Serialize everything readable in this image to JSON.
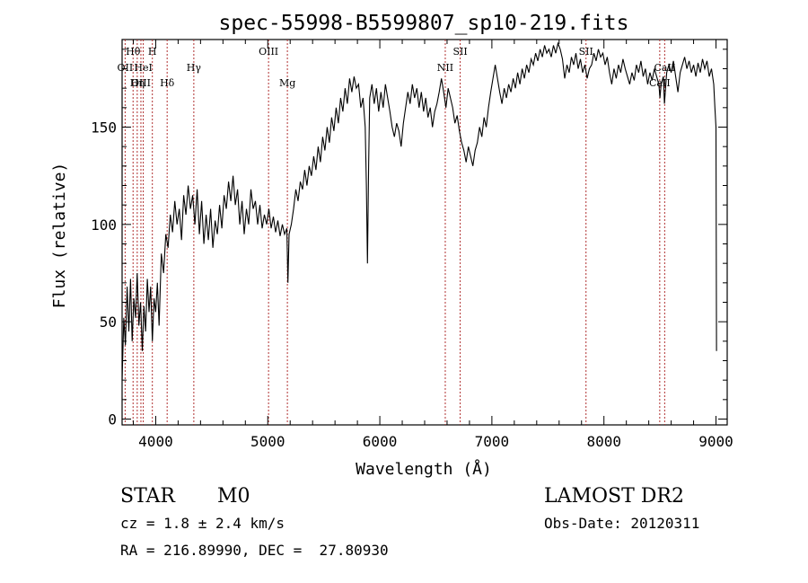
{
  "chart_data": {
    "type": "line",
    "title": "spec-55998-B5599807_sp10-219.fits",
    "xlabel": "Wavelength (Å)",
    "ylabel": "Flux (relative)",
    "xlim": [
      3700,
      9100
    ],
    "ylim": [
      -3,
      195
    ],
    "xticks": [
      4000,
      5000,
      6000,
      7000,
      8000,
      9000
    ],
    "yticks": [
      0,
      50,
      100,
      150
    ],
    "grid": false,
    "line_color": "#000000",
    "marker_color": "#b03030",
    "series": [
      {
        "points": [
          [
            3700,
            20
          ],
          [
            3715,
            52
          ],
          [
            3730,
            38
          ],
          [
            3745,
            68
          ],
          [
            3760,
            45
          ],
          [
            3775,
            72
          ],
          [
            3790,
            40
          ],
          [
            3805,
            62
          ],
          [
            3820,
            52
          ],
          [
            3835,
            75
          ],
          [
            3850,
            48
          ],
          [
            3865,
            60
          ],
          [
            3880,
            35
          ],
          [
            3895,
            58
          ],
          [
            3910,
            45
          ],
          [
            3925,
            72
          ],
          [
            3940,
            55
          ],
          [
            3955,
            68
          ],
          [
            3970,
            40
          ],
          [
            3985,
            62
          ],
          [
            4000,
            55
          ],
          [
            4015,
            70
          ],
          [
            4030,
            48
          ],
          [
            4050,
            85
          ],
          [
            4070,
            75
          ],
          [
            4090,
            95
          ],
          [
            4110,
            88
          ],
          [
            4130,
            105
          ],
          [
            4150,
            96
          ],
          [
            4170,
            112
          ],
          [
            4190,
            100
          ],
          [
            4210,
            108
          ],
          [
            4230,
            92
          ],
          [
            4250,
            115
          ],
          [
            4270,
            105
          ],
          [
            4290,
            120
          ],
          [
            4310,
            108
          ],
          [
            4330,
            115
          ],
          [
            4350,
            100
          ],
          [
            4370,
            118
          ],
          [
            4390,
            95
          ],
          [
            4410,
            112
          ],
          [
            4430,
            90
          ],
          [
            4450,
            105
          ],
          [
            4470,
            92
          ],
          [
            4490,
            108
          ],
          [
            4510,
            88
          ],
          [
            4530,
            102
          ],
          [
            4550,
            95
          ],
          [
            4570,
            110
          ],
          [
            4590,
            98
          ],
          [
            4610,
            115
          ],
          [
            4630,
            108
          ],
          [
            4650,
            122
          ],
          [
            4670,
            112
          ],
          [
            4690,
            125
          ],
          [
            4710,
            110
          ],
          [
            4730,
            118
          ],
          [
            4750,
            100
          ],
          [
            4770,
            112
          ],
          [
            4790,
            95
          ],
          [
            4810,
            108
          ],
          [
            4830,
            100
          ],
          [
            4850,
            118
          ],
          [
            4870,
            108
          ],
          [
            4890,
            112
          ],
          [
            4910,
            100
          ],
          [
            4930,
            110
          ],
          [
            4950,
            98
          ],
          [
            4970,
            105
          ],
          [
            4990,
            100
          ],
          [
            5010,
            108
          ],
          [
            5030,
            98
          ],
          [
            5050,
            104
          ],
          [
            5070,
            96
          ],
          [
            5090,
            102
          ],
          [
            5110,
            94
          ],
          [
            5130,
            100
          ],
          [
            5150,
            95
          ],
          [
            5170,
            98
          ],
          [
            5180,
            70
          ],
          [
            5190,
            95
          ],
          [
            5210,
            100
          ],
          [
            5230,
            108
          ],
          [
            5250,
            118
          ],
          [
            5270,
            112
          ],
          [
            5290,
            122
          ],
          [
            5310,
            118
          ],
          [
            5330,
            128
          ],
          [
            5350,
            120
          ],
          [
            5370,
            130
          ],
          [
            5390,
            125
          ],
          [
            5410,
            135
          ],
          [
            5430,
            128
          ],
          [
            5450,
            140
          ],
          [
            5470,
            132
          ],
          [
            5490,
            145
          ],
          [
            5510,
            138
          ],
          [
            5530,
            150
          ],
          [
            5550,
            142
          ],
          [
            5570,
            155
          ],
          [
            5590,
            148
          ],
          [
            5610,
            160
          ],
          [
            5630,
            152
          ],
          [
            5650,
            165
          ],
          [
            5670,
            158
          ],
          [
            5690,
            170
          ],
          [
            5710,
            162
          ],
          [
            5730,
            175
          ],
          [
            5750,
            168
          ],
          [
            5770,
            176
          ],
          [
            5790,
            170
          ],
          [
            5810,
            172
          ],
          [
            5830,
            160
          ],
          [
            5850,
            165
          ],
          [
            5870,
            150
          ],
          [
            5880,
            120
          ],
          [
            5890,
            80
          ],
          [
            5900,
            130
          ],
          [
            5910,
            165
          ],
          [
            5930,
            172
          ],
          [
            5950,
            162
          ],
          [
            5970,
            170
          ],
          [
            5990,
            158
          ],
          [
            6010,
            168
          ],
          [
            6030,
            160
          ],
          [
            6050,
            172
          ],
          [
            6070,
            165
          ],
          [
            6090,
            158
          ],
          [
            6110,
            150
          ],
          [
            6130,
            145
          ],
          [
            6150,
            152
          ],
          [
            6170,
            148
          ],
          [
            6190,
            140
          ],
          [
            6210,
            152
          ],
          [
            6230,
            160
          ],
          [
            6250,
            168
          ],
          [
            6270,
            162
          ],
          [
            6290,
            172
          ],
          [
            6310,
            165
          ],
          [
            6330,
            170
          ],
          [
            6350,
            160
          ],
          [
            6370,
            168
          ],
          [
            6390,
            158
          ],
          [
            6410,
            165
          ],
          [
            6430,
            155
          ],
          [
            6450,
            160
          ],
          [
            6470,
            150
          ],
          [
            6490,
            158
          ],
          [
            6510,
            162
          ],
          [
            6530,
            168
          ],
          [
            6550,
            175
          ],
          [
            6570,
            168
          ],
          [
            6590,
            160
          ],
          [
            6610,
            170
          ],
          [
            6630,
            165
          ],
          [
            6650,
            160
          ],
          [
            6670,
            152
          ],
          [
            6690,
            156
          ],
          [
            6710,
            148
          ],
          [
            6730,
            142
          ],
          [
            6750,
            138
          ],
          [
            6770,
            132
          ],
          [
            6790,
            140
          ],
          [
            6810,
            135
          ],
          [
            6830,
            130
          ],
          [
            6850,
            138
          ],
          [
            6870,
            142
          ],
          [
            6890,
            150
          ],
          [
            6910,
            145
          ],
          [
            6930,
            155
          ],
          [
            6950,
            150
          ],
          [
            6970,
            160
          ],
          [
            6990,
            168
          ],
          [
            7010,
            175
          ],
          [
            7030,
            182
          ],
          [
            7050,
            175
          ],
          [
            7070,
            168
          ],
          [
            7090,
            162
          ],
          [
            7110,
            170
          ],
          [
            7130,
            165
          ],
          [
            7150,
            172
          ],
          [
            7170,
            168
          ],
          [
            7190,
            175
          ],
          [
            7210,
            170
          ],
          [
            7230,
            178
          ],
          [
            7250,
            172
          ],
          [
            7270,
            180
          ],
          [
            7290,
            175
          ],
          [
            7310,
            182
          ],
          [
            7330,
            178
          ],
          [
            7350,
            185
          ],
          [
            7370,
            182
          ],
          [
            7390,
            188
          ],
          [
            7410,
            184
          ],
          [
            7430,
            190
          ],
          [
            7450,
            186
          ],
          [
            7470,
            192
          ],
          [
            7490,
            188
          ],
          [
            7510,
            190
          ],
          [
            7530,
            186
          ],
          [
            7550,
            192
          ],
          [
            7570,
            188
          ],
          [
            7590,
            193
          ],
          [
            7610,
            190
          ],
          [
            7630,
            185
          ],
          [
            7650,
            175
          ],
          [
            7670,
            182
          ],
          [
            7690,
            178
          ],
          [
            7710,
            186
          ],
          [
            7730,
            182
          ],
          [
            7750,
            188
          ],
          [
            7770,
            180
          ],
          [
            7790,
            185
          ],
          [
            7810,
            178
          ],
          [
            7830,
            182
          ],
          [
            7850,
            175
          ],
          [
            7870,
            180
          ],
          [
            7890,
            182
          ],
          [
            7910,
            188
          ],
          [
            7930,
            184
          ],
          [
            7950,
            190
          ],
          [
            7970,
            186
          ],
          [
            7990,
            188
          ],
          [
            8010,
            182
          ],
          [
            8030,
            186
          ],
          [
            8050,
            178
          ],
          [
            8070,
            172
          ],
          [
            8090,
            180
          ],
          [
            8110,
            175
          ],
          [
            8130,
            182
          ],
          [
            8150,
            178
          ],
          [
            8170,
            185
          ],
          [
            8190,
            180
          ],
          [
            8210,
            176
          ],
          [
            8230,
            172
          ],
          [
            8250,
            178
          ],
          [
            8270,
            174
          ],
          [
            8290,
            182
          ],
          [
            8310,
            178
          ],
          [
            8330,
            184
          ],
          [
            8350,
            176
          ],
          [
            8370,
            180
          ],
          [
            8390,
            172
          ],
          [
            8410,
            178
          ],
          [
            8430,
            174
          ],
          [
            8450,
            180
          ],
          [
            8470,
            176
          ],
          [
            8490,
            172
          ],
          [
            8500,
            165
          ],
          [
            8510,
            172
          ],
          [
            8530,
            176
          ],
          [
            8540,
            162
          ],
          [
            8560,
            178
          ],
          [
            8580,
            182
          ],
          [
            8600,
            178
          ],
          [
            8620,
            184
          ],
          [
            8640,
            176
          ],
          [
            8660,
            168
          ],
          [
            8680,
            178
          ],
          [
            8700,
            182
          ],
          [
            8720,
            186
          ],
          [
            8740,
            180
          ],
          [
            8760,
            184
          ],
          [
            8780,
            178
          ],
          [
            8800,
            182
          ],
          [
            8820,
            176
          ],
          [
            8840,
            183
          ],
          [
            8860,
            178
          ],
          [
            8880,
            185
          ],
          [
            8900,
            180
          ],
          [
            8920,
            184
          ],
          [
            8940,
            176
          ],
          [
            8960,
            180
          ],
          [
            8980,
            172
          ],
          [
            8990,
            160
          ],
          [
            9000,
            150
          ],
          [
            9005,
            35
          ]
        ]
      }
    ],
    "lines": [
      {
        "label": "Hθ",
        "x": 3798,
        "row": 1
      },
      {
        "label": "H",
        "x": 3970,
        "row": 1
      },
      {
        "label": "OII",
        "x": 3727,
        "row": 2
      },
      {
        "label": "HeI",
        "x": 3889,
        "row": 2
      },
      {
        "label": "Hγ",
        "x": 4340,
        "row": 2
      },
      {
        "label": "OIII",
        "x": 5007,
        "row": 1
      },
      {
        "label": "Mg",
        "x": 5175,
        "row": 3
      },
      {
        "label": "NII",
        "x": 6584,
        "row": 2
      },
      {
        "label": "SII",
        "x": 6717,
        "row": 1
      },
      {
        "label": "CaII",
        "x": 8542,
        "row": 2
      },
      {
        "label": "OIII",
        "x": 3868,
        "row": 3
      },
      {
        "label": "Hη",
        "x": 3835,
        "row": 3
      },
      {
        "label": "Hδ",
        "x": 4102,
        "row": 3
      },
      {
        "label": "CaII",
        "x": 8498,
        "row": 3
      },
      {
        "label": "SII",
        "x": 7840,
        "row": 1
      }
    ]
  },
  "info": {
    "object_class": "STAR",
    "subclass": "M0",
    "survey": "LAMOST DR2",
    "cz": "cz = 1.8 ± 2.4 km/s",
    "obs_date": "Obs-Date: 20120311",
    "coords": "RA = 216.89990, DEC =  27.80930"
  }
}
